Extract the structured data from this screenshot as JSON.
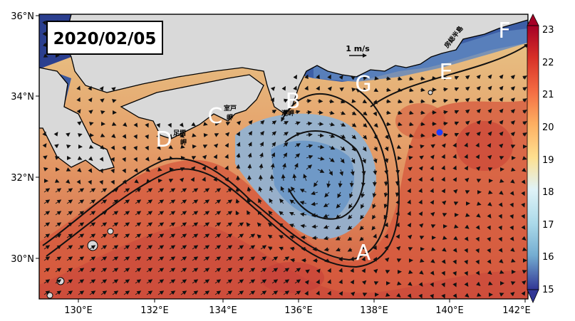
{
  "title_date": "2020/02/05",
  "scale_arrow_label": "1 m/s",
  "x_ticks": [
    "130°E",
    "132°E",
    "134°E",
    "136°E",
    "138°E",
    "140°E",
    "142°E"
  ],
  "y_ticks": [
    "36°N",
    "34°N",
    "32°N",
    "30°N"
  ],
  "colorbar": {
    "ticks": [
      "23",
      "22",
      "21",
      "20",
      "19",
      "18",
      "17",
      "16",
      "15"
    ],
    "min": 15,
    "max": 23,
    "extend": "both"
  },
  "point_labels": [
    {
      "id": "A",
      "text": "A"
    },
    {
      "id": "B",
      "text": "B"
    },
    {
      "id": "C",
      "text": "C"
    },
    {
      "id": "D",
      "text": "D"
    },
    {
      "id": "E",
      "text": "E"
    },
    {
      "id": "F",
      "text": "F"
    },
    {
      "id": "G",
      "text": "G"
    }
  ],
  "place_names": {
    "muroto_1": "室戸",
    "muroto_2": "岬",
    "ashizuri_1": "足摺",
    "ashizuri_2": "岬",
    "shionomisaki": "潮岬",
    "boso": "房総半島"
  },
  "marker": {
    "color": "#1f3fff",
    "lon": 139.8,
    "lat": 33.1
  },
  "colors": {
    "land": "#d9d9d9",
    "coastal_cold": "#2b3f8f",
    "warm": "#d0503a",
    "cold_eddy": "#7fa7cf"
  }
}
